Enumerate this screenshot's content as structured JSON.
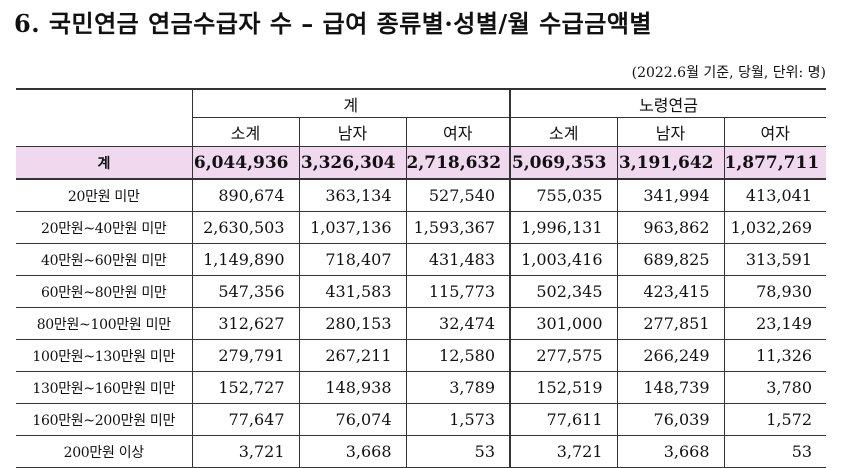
{
  "title": "6. 국민연금 연금수급자 수 – 급여 종류별·성별/월 수급금액별",
  "note": "(2022.6월 기준, 당월, 단위: 명)",
  "header": {
    "group1": "계",
    "group2": "노령연금",
    "sub": [
      "소계",
      "남자",
      "여자",
      "소계",
      "남자",
      "여자"
    ]
  },
  "total": {
    "label": "계",
    "values": [
      "6,044,936",
      "3,326,304",
      "2,718,632",
      "5,069,353",
      "3,191,642",
      "1,877,711"
    ]
  },
  "rows": [
    {
      "label": "20만원 미만",
      "values": [
        "890,674",
        "363,134",
        "527,540",
        "755,035",
        "341,994",
        "413,041"
      ]
    },
    {
      "label": "20만원~40만원 미만",
      "values": [
        "2,630,503",
        "1,037,136",
        "1,593,367",
        "1,996,131",
        "963,862",
        "1,032,269"
      ]
    },
    {
      "label": "40만원~60만원 미만",
      "values": [
        "1,149,890",
        "718,407",
        "431,483",
        "1,003,416",
        "689,825",
        "313,591"
      ]
    },
    {
      "label": "60만원~80만원 미만",
      "values": [
        "547,356",
        "431,583",
        "115,773",
        "502,345",
        "423,415",
        "78,930"
      ]
    },
    {
      "label": "80만원~100만원 미만",
      "values": [
        "312,627",
        "280,153",
        "32,474",
        "301,000",
        "277,851",
        "23,149"
      ]
    },
    {
      "label": "100만원~130만원 미만",
      "values": [
        "279,791",
        "267,211",
        "12,580",
        "277,575",
        "266,249",
        "11,326"
      ]
    },
    {
      "label": "130만원~160만원 미만",
      "values": [
        "152,727",
        "148,938",
        "3,789",
        "152,519",
        "148,739",
        "3,780"
      ]
    },
    {
      "label": "160만원~200만원 미만",
      "values": [
        "77,647",
        "76,074",
        "1,573",
        "77,611",
        "76,039",
        "1,572"
      ]
    },
    {
      "label": "200만원 이상",
      "values": [
        "3,721",
        "3,668",
        "53",
        "3,721",
        "3,668",
        "53"
      ]
    }
  ]
}
